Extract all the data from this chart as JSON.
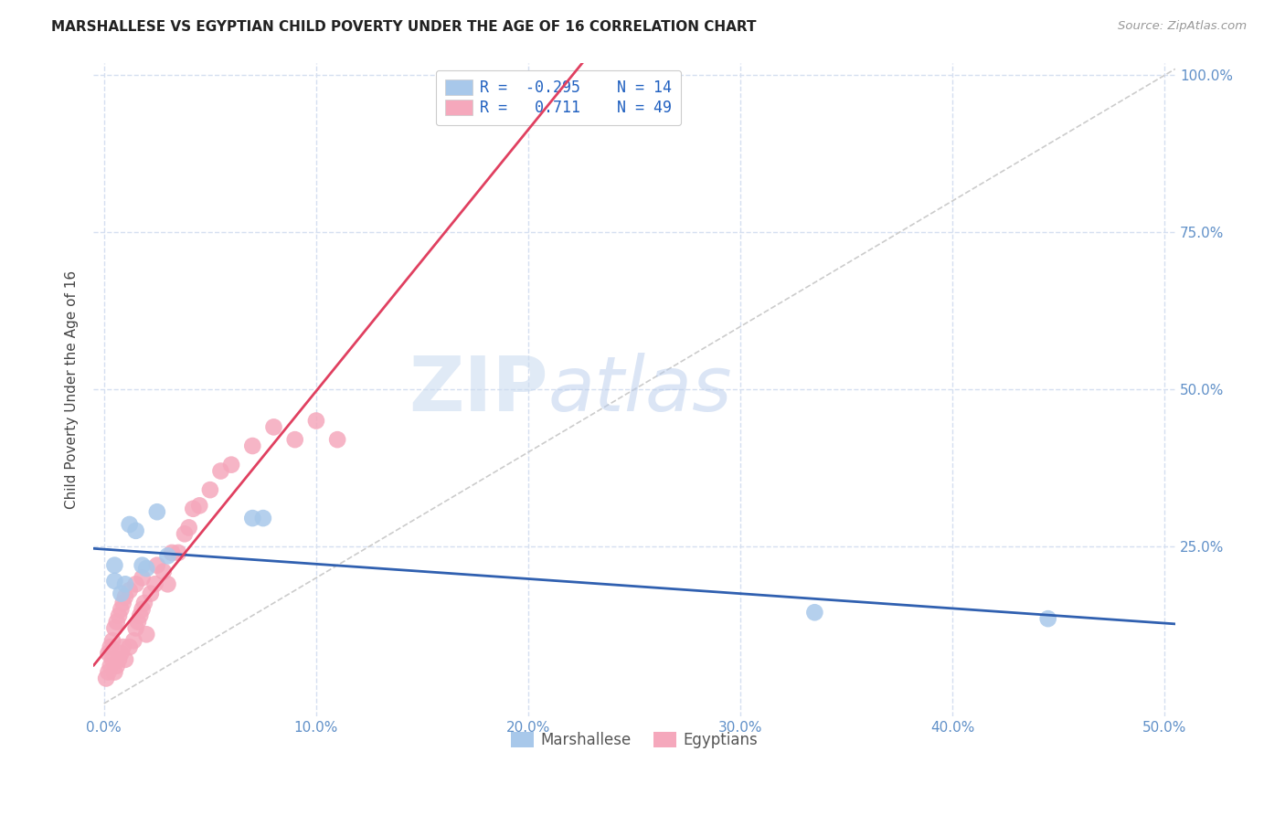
{
  "title": "MARSHALLESE VS EGYPTIAN CHILD POVERTY UNDER THE AGE OF 16 CORRELATION CHART",
  "source": "Source: ZipAtlas.com",
  "ylabel": "Child Poverty Under the Age of 16",
  "xlim": [
    -0.005,
    0.505
  ],
  "ylim": [
    -0.02,
    1.02
  ],
  "xticks": [
    0.0,
    0.1,
    0.2,
    0.3,
    0.4,
    0.5
  ],
  "xticklabels": [
    "0.0%",
    "10.0%",
    "20.0%",
    "30.0%",
    "40.0%",
    "50.0%"
  ],
  "yticks": [
    0.0,
    0.25,
    0.5,
    0.75,
    1.0
  ],
  "yticklabels_right": [
    "",
    "25.0%",
    "50.0%",
    "75.0%",
    "100.0%"
  ],
  "marshallese_R": -0.295,
  "marshallese_N": 14,
  "egyptian_R": 0.711,
  "egyptian_N": 49,
  "marshallese_color": "#a8c8ea",
  "egyptian_color": "#f5a8bc",
  "marshallese_line_color": "#3060b0",
  "egyptian_line_color": "#e04060",
  "grid_color": "#d5dff0",
  "background_color": "#ffffff",
  "marshallese_x": [
    0.005,
    0.005,
    0.008,
    0.01,
    0.012,
    0.015,
    0.018,
    0.02,
    0.025,
    0.03,
    0.07,
    0.075,
    0.335,
    0.445
  ],
  "marshallese_y": [
    0.195,
    0.22,
    0.175,
    0.19,
    0.285,
    0.275,
    0.22,
    0.215,
    0.305,
    0.235,
    0.295,
    0.295,
    0.145,
    0.135
  ],
  "egyptian_x": [
    0.001,
    0.002,
    0.002,
    0.003,
    0.003,
    0.004,
    0.004,
    0.005,
    0.005,
    0.006,
    0.006,
    0.007,
    0.007,
    0.008,
    0.008,
    0.009,
    0.009,
    0.01,
    0.01,
    0.012,
    0.012,
    0.014,
    0.015,
    0.015,
    0.016,
    0.017,
    0.018,
    0.018,
    0.019,
    0.02,
    0.022,
    0.024,
    0.025,
    0.028,
    0.03,
    0.032,
    0.035,
    0.038,
    0.04,
    0.042,
    0.045,
    0.05,
    0.055,
    0.06,
    0.07,
    0.08,
    0.09,
    0.1,
    0.11
  ],
  "egyptian_y": [
    0.04,
    0.05,
    0.08,
    0.06,
    0.09,
    0.07,
    0.1,
    0.05,
    0.12,
    0.06,
    0.13,
    0.07,
    0.14,
    0.08,
    0.15,
    0.09,
    0.16,
    0.07,
    0.17,
    0.09,
    0.18,
    0.1,
    0.12,
    0.19,
    0.13,
    0.14,
    0.15,
    0.2,
    0.16,
    0.11,
    0.175,
    0.19,
    0.22,
    0.21,
    0.19,
    0.24,
    0.24,
    0.27,
    0.28,
    0.31,
    0.315,
    0.34,
    0.37,
    0.38,
    0.41,
    0.44,
    0.42,
    0.45,
    0.42
  ],
  "ref_line_x": [
    0.0,
    0.505
  ],
  "ref_line_y": [
    0.0,
    1.01
  ],
  "watermark_zip_color": "#c8dcf0",
  "watermark_atlas_color": "#b0c8e8"
}
